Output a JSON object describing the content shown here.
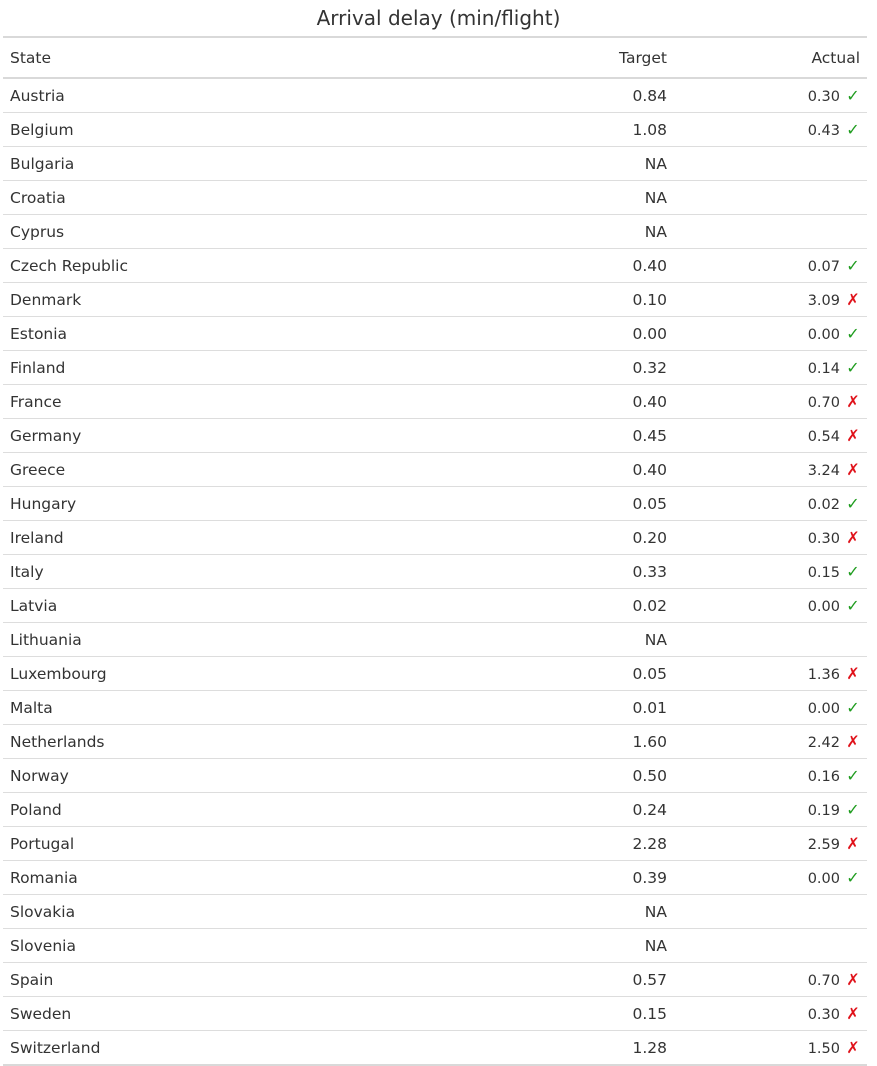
{
  "title": "Arrival delay (min/flight)",
  "headers": {
    "state": "State",
    "target": "Target",
    "actual": "Actual"
  },
  "colors": {
    "ok": "#1e9c1e",
    "bad": "#e0121a"
  },
  "rows": [
    {
      "state": "Austria",
      "target": "0.84",
      "actual": "0.30",
      "status": "ok"
    },
    {
      "state": "Belgium",
      "target": "1.08",
      "actual": "0.43",
      "status": "ok"
    },
    {
      "state": "Bulgaria",
      "target": "NA",
      "actual": "",
      "status": "none"
    },
    {
      "state": "Croatia",
      "target": "NA",
      "actual": "",
      "status": "none"
    },
    {
      "state": "Cyprus",
      "target": "NA",
      "actual": "",
      "status": "none"
    },
    {
      "state": "Czech Republic",
      "target": "0.40",
      "actual": "0.07",
      "status": "ok"
    },
    {
      "state": "Denmark",
      "target": "0.10",
      "actual": "3.09",
      "status": "bad"
    },
    {
      "state": "Estonia",
      "target": "0.00",
      "actual": "0.00",
      "status": "ok"
    },
    {
      "state": "Finland",
      "target": "0.32",
      "actual": "0.14",
      "status": "ok"
    },
    {
      "state": "France",
      "target": "0.40",
      "actual": "0.70",
      "status": "bad"
    },
    {
      "state": "Germany",
      "target": "0.45",
      "actual": "0.54",
      "status": "bad"
    },
    {
      "state": "Greece",
      "target": "0.40",
      "actual": "3.24",
      "status": "bad"
    },
    {
      "state": "Hungary",
      "target": "0.05",
      "actual": "0.02",
      "status": "ok"
    },
    {
      "state": "Ireland",
      "target": "0.20",
      "actual": "0.30",
      "status": "bad"
    },
    {
      "state": "Italy",
      "target": "0.33",
      "actual": "0.15",
      "status": "ok"
    },
    {
      "state": "Latvia",
      "target": "0.02",
      "actual": "0.00",
      "status": "ok"
    },
    {
      "state": "Lithuania",
      "target": "NA",
      "actual": "",
      "status": "none"
    },
    {
      "state": "Luxembourg",
      "target": "0.05",
      "actual": "1.36",
      "status": "bad"
    },
    {
      "state": "Malta",
      "target": "0.01",
      "actual": "0.00",
      "status": "ok"
    },
    {
      "state": "Netherlands",
      "target": "1.60",
      "actual": "2.42",
      "status": "bad"
    },
    {
      "state": "Norway",
      "target": "0.50",
      "actual": "0.16",
      "status": "ok"
    },
    {
      "state": "Poland",
      "target": "0.24",
      "actual": "0.19",
      "status": "ok"
    },
    {
      "state": "Portugal",
      "target": "2.28",
      "actual": "2.59",
      "status": "bad"
    },
    {
      "state": "Romania",
      "target": "0.39",
      "actual": "0.00",
      "status": "ok"
    },
    {
      "state": "Slovakia",
      "target": "NA",
      "actual": "",
      "status": "none"
    },
    {
      "state": "Slovenia",
      "target": "NA",
      "actual": "",
      "status": "none"
    },
    {
      "state": "Spain",
      "target": "0.57",
      "actual": "0.70",
      "status": "bad"
    },
    {
      "state": "Sweden",
      "target": "0.15",
      "actual": "0.30",
      "status": "bad"
    },
    {
      "state": "Switzerland",
      "target": "1.28",
      "actual": "1.50",
      "status": "bad"
    }
  ]
}
